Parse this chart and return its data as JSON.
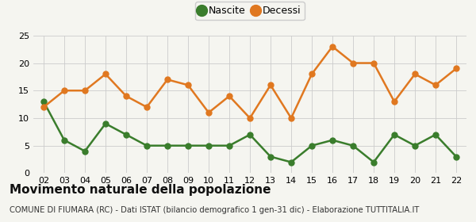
{
  "years": [
    2,
    3,
    4,
    5,
    6,
    7,
    8,
    9,
    10,
    11,
    12,
    13,
    14,
    15,
    16,
    17,
    18,
    19,
    20,
    21,
    22
  ],
  "nascite": [
    13,
    6,
    4,
    9,
    7,
    5,
    5,
    5,
    5,
    5,
    7,
    3,
    2,
    5,
    6,
    5,
    2,
    7,
    5,
    7,
    3
  ],
  "decessi": [
    12,
    15,
    15,
    18,
    14,
    12,
    17,
    16,
    11,
    14,
    10,
    16,
    10,
    18,
    23,
    20,
    20,
    13,
    18,
    16,
    19
  ],
  "nascite_color": "#3a7d2c",
  "decessi_color": "#e07820",
  "background_color": "#f5f5f0",
  "grid_color": "#cccccc",
  "ylim": [
    0,
    25
  ],
  "yticks": [
    0,
    5,
    10,
    15,
    20,
    25
  ],
  "title": "Movimento naturale della popolazione",
  "subtitle": "COMUNE DI FIUMARA (RC) - Dati ISTAT (bilancio demografico 1 gen-31 dic) - Elaborazione TUTTITALIA.IT",
  "legend_nascite": "Nascite",
  "legend_decessi": "Decessi",
  "marker_size": 5,
  "line_width": 1.8,
  "title_fontsize": 11,
  "subtitle_fontsize": 7.2,
  "tick_fontsize": 8,
  "legend_fontsize": 9
}
